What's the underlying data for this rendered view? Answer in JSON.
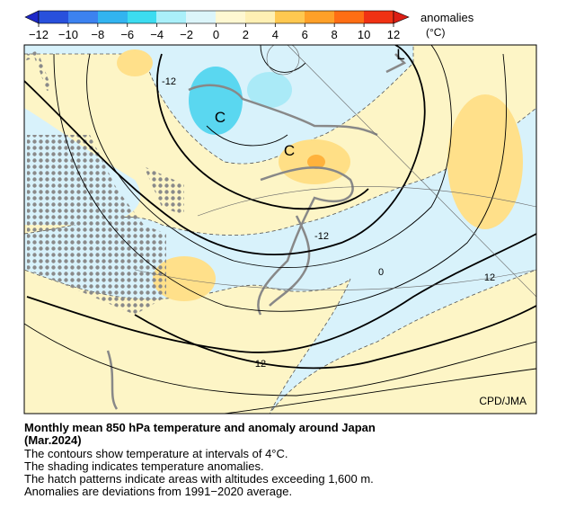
{
  "colorbar": {
    "ticks": [
      "−12",
      "−10",
      "−8",
      "−6",
      "−4",
      "−2",
      "0",
      "2",
      "4",
      "6",
      "8",
      "10",
      "12"
    ],
    "label": "anomalies",
    "unit": "(°C)"
  },
  "map": {
    "contour_labels": [
      "-12",
      "-12",
      "0",
      "12",
      "12"
    ],
    "pressure_labels": [
      "C",
      "C",
      "L"
    ],
    "credit": "CPD/JMA"
  },
  "caption": {
    "title_lines": [
      "Monthly mean 850 hPa temperature and anomaly around Japan",
      "(Mar.2024)"
    ],
    "lines": [
      "The contours show temperature at intervals of 4°C.",
      "The shading indicates temperature anomalies.",
      "The hatch patterns indicate areas with altitudes exceeding 1,600 m.",
      "Anomalies are deviations from 1991−2020 average."
    ]
  }
}
